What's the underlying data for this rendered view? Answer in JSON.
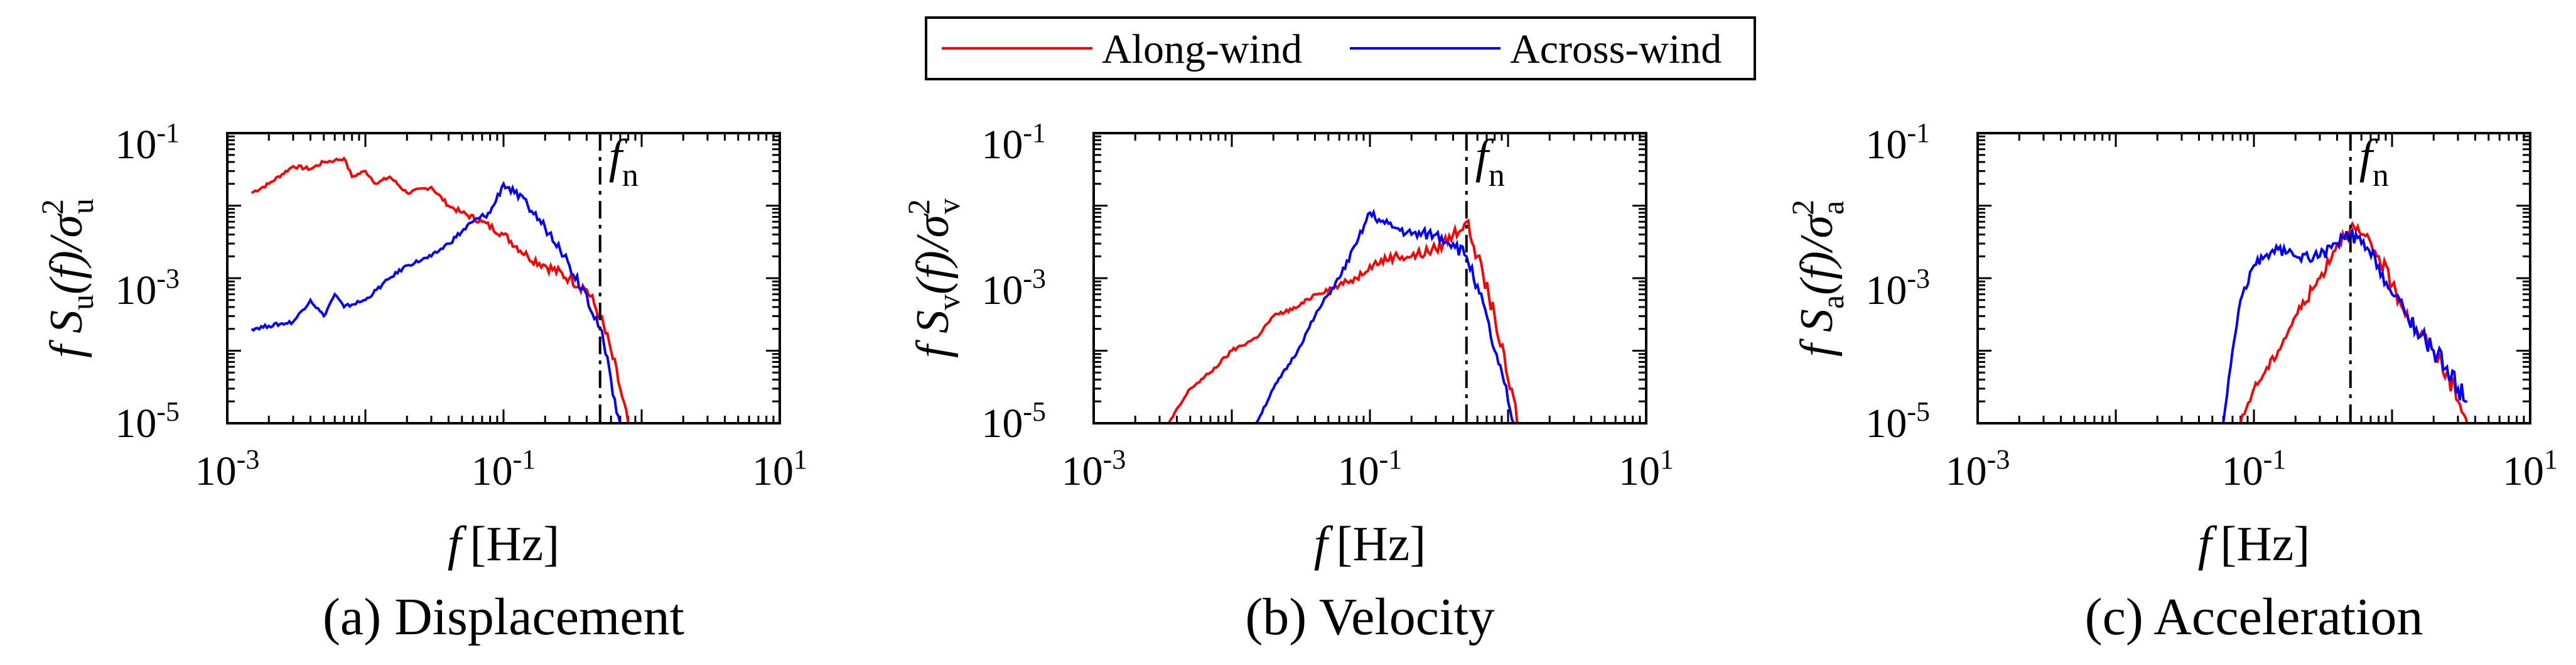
{
  "legend": {
    "entries": [
      {
        "label": "Along-wind",
        "color": "#ff0000"
      },
      {
        "label": "Across-wind",
        "color": "#0000ff"
      }
    ]
  },
  "colors": {
    "along": "#ff0000",
    "across": "#0000ff",
    "axis": "#000000"
  },
  "chart_data": [
    {
      "type": "line",
      "caption": "(a) Displacement",
      "xlabel_var": "f",
      "xlabel_unit": "[Hz]",
      "ylabel": {
        "lead": "f S",
        "sub": "u",
        "mid": "(f)/σ",
        "sup": "2",
        "subsig": "u"
      },
      "xscale": "log",
      "yscale": "log",
      "xlim": [
        0.001,
        10
      ],
      "ylim": [
        1e-05,
        0.1
      ],
      "xticks": [
        {
          "base": "10",
          "exp": "-3"
        },
        {
          "base": "10",
          "exp": "-1"
        },
        {
          "base": "10",
          "exp": "1"
        }
      ],
      "yticks": [
        {
          "base": "10",
          "exp": "-5"
        },
        {
          "base": "10",
          "exp": "-3"
        },
        {
          "base": "10",
          "exp": "-1"
        }
      ],
      "fn": {
        "value": 0.5,
        "label": "f",
        "sub": "n"
      },
      "series": [
        {
          "name": "Along-wind",
          "color": "#ff0000",
          "x": [
            0.0015,
            0.002,
            0.003,
            0.004,
            0.005,
            0.006,
            0.007,
            0.008,
            0.01,
            0.012,
            0.015,
            0.02,
            0.03,
            0.04,
            0.05,
            0.07,
            0.1,
            0.15,
            0.2,
            0.3,
            0.4,
            0.5,
            0.6,
            0.7,
            0.8
          ],
          "y": [
            0.015,
            0.02,
            0.035,
            0.032,
            0.04,
            0.042,
            0.045,
            0.025,
            0.03,
            0.02,
            0.025,
            0.015,
            0.018,
            0.01,
            0.008,
            0.006,
            0.004,
            0.002,
            0.0015,
            0.001,
            0.0007,
            0.0003,
            0.0001,
            3e-05,
            1e-05
          ]
        },
        {
          "name": "Across-wind",
          "color": "#0000ff",
          "x": [
            0.0015,
            0.002,
            0.003,
            0.004,
            0.005,
            0.006,
            0.007,
            0.01,
            0.015,
            0.02,
            0.03,
            0.04,
            0.06,
            0.08,
            0.1,
            0.12,
            0.15,
            0.2,
            0.25,
            0.3,
            0.4,
            0.5,
            0.6,
            0.7
          ],
          "y": [
            0.0002,
            0.00022,
            0.00025,
            0.0005,
            0.0003,
            0.0006,
            0.0004,
            0.0005,
            0.001,
            0.0015,
            0.002,
            0.003,
            0.006,
            0.008,
            0.02,
            0.015,
            0.01,
            0.005,
            0.003,
            0.0015,
            0.0006,
            0.0002,
            4e-05,
            1e-05
          ]
        }
      ]
    },
    {
      "type": "line",
      "caption": "(b) Velocity",
      "xlabel_var": "f",
      "xlabel_unit": "[Hz]",
      "ylabel": {
        "lead": "f S",
        "sub": "v",
        "mid": "(f)/σ",
        "sup": "2",
        "subsig": "v"
      },
      "xscale": "log",
      "yscale": "log",
      "xlim": [
        0.001,
        10
      ],
      "ylim": [
        1e-05,
        0.1
      ],
      "xticks": [
        {
          "base": "10",
          "exp": "-3"
        },
        {
          "base": "10",
          "exp": "-1"
        },
        {
          "base": "10",
          "exp": "1"
        }
      ],
      "yticks": [
        {
          "base": "10",
          "exp": "-5"
        },
        {
          "base": "10",
          "exp": "-3"
        },
        {
          "base": "10",
          "exp": "-1"
        }
      ],
      "fn": {
        "value": 0.5,
        "label": "f",
        "sub": "n"
      },
      "series": [
        {
          "name": "Along-wind",
          "color": "#ff0000",
          "x": [
            0.0035,
            0.005,
            0.007,
            0.01,
            0.015,
            0.02,
            0.03,
            0.04,
            0.06,
            0.08,
            0.1,
            0.15,
            0.2,
            0.3,
            0.4,
            0.5,
            0.6,
            0.8,
            1.0,
            1.2
          ],
          "y": [
            1e-05,
            3e-05,
            5e-05,
            0.0001,
            0.00015,
            0.0003,
            0.0004,
            0.0006,
            0.0008,
            0.001,
            0.0015,
            0.002,
            0.002,
            0.0025,
            0.004,
            0.006,
            0.002,
            0.0003,
            4e-05,
            1e-05
          ]
        },
        {
          "name": "Across-wind",
          "color": "#0000ff",
          "x": [
            0.015,
            0.02,
            0.03,
            0.04,
            0.05,
            0.06,
            0.08,
            0.1,
            0.12,
            0.15,
            0.2,
            0.3,
            0.4,
            0.5,
            0.6,
            0.8,
            1.0,
            1.1
          ],
          "y": [
            1e-05,
            3e-05,
            0.0001,
            0.0003,
            0.0006,
            0.001,
            0.003,
            0.008,
            0.006,
            0.005,
            0.004,
            0.004,
            0.003,
            0.002,
            0.0008,
            0.0001,
            2e-05,
            1e-05
          ]
        }
      ]
    },
    {
      "type": "line",
      "caption": "(c) Acceleration",
      "xlabel_var": "f",
      "xlabel_unit": "[Hz]",
      "ylabel": {
        "lead": "f S",
        "sub": "a",
        "mid": "(f)/σ",
        "sup": "2",
        "subsig": "a"
      },
      "xscale": "log",
      "yscale": "log",
      "xlim": [
        0.001,
        10
      ],
      "ylim": [
        1e-05,
        0.1
      ],
      "xticks": [
        {
          "base": "10",
          "exp": "-3"
        },
        {
          "base": "10",
          "exp": "-1"
        },
        {
          "base": "10",
          "exp": "1"
        }
      ],
      "yticks": [
        {
          "base": "10",
          "exp": "-5"
        },
        {
          "base": "10",
          "exp": "-3"
        },
        {
          "base": "10",
          "exp": "-1"
        }
      ],
      "fn": {
        "value": 0.5,
        "label": "f",
        "sub": "n"
      },
      "series": [
        {
          "name": "Along-wind",
          "color": "#ff0000",
          "x": [
            0.08,
            0.1,
            0.12,
            0.15,
            0.2,
            0.3,
            0.4,
            0.5,
            0.6,
            0.8,
            1.0,
            1.5,
            2.0,
            2.5,
            3.0,
            3.5
          ],
          "y": [
            1e-05,
            3e-05,
            5e-05,
            0.0001,
            0.0003,
            0.001,
            0.003,
            0.005,
            0.004,
            0.002,
            0.0008,
            0.0002,
            0.0001,
            5e-05,
            2e-05,
            1e-05
          ]
        },
        {
          "name": "Across-wind",
          "color": "#0000ff",
          "x": [
            0.06,
            0.07,
            0.08,
            0.1,
            0.12,
            0.15,
            0.2,
            0.3,
            0.4,
            0.5,
            0.6,
            0.8,
            1.0,
            1.5,
            2.0,
            2.5,
            3.0,
            3.5
          ],
          "y": [
            1e-05,
            0.0001,
            0.0005,
            0.0015,
            0.002,
            0.0025,
            0.002,
            0.002,
            0.003,
            0.004,
            0.003,
            0.0015,
            0.0006,
            0.0002,
            0.0001,
            6e-05,
            3e-05,
            2e-05
          ]
        }
      ]
    }
  ]
}
